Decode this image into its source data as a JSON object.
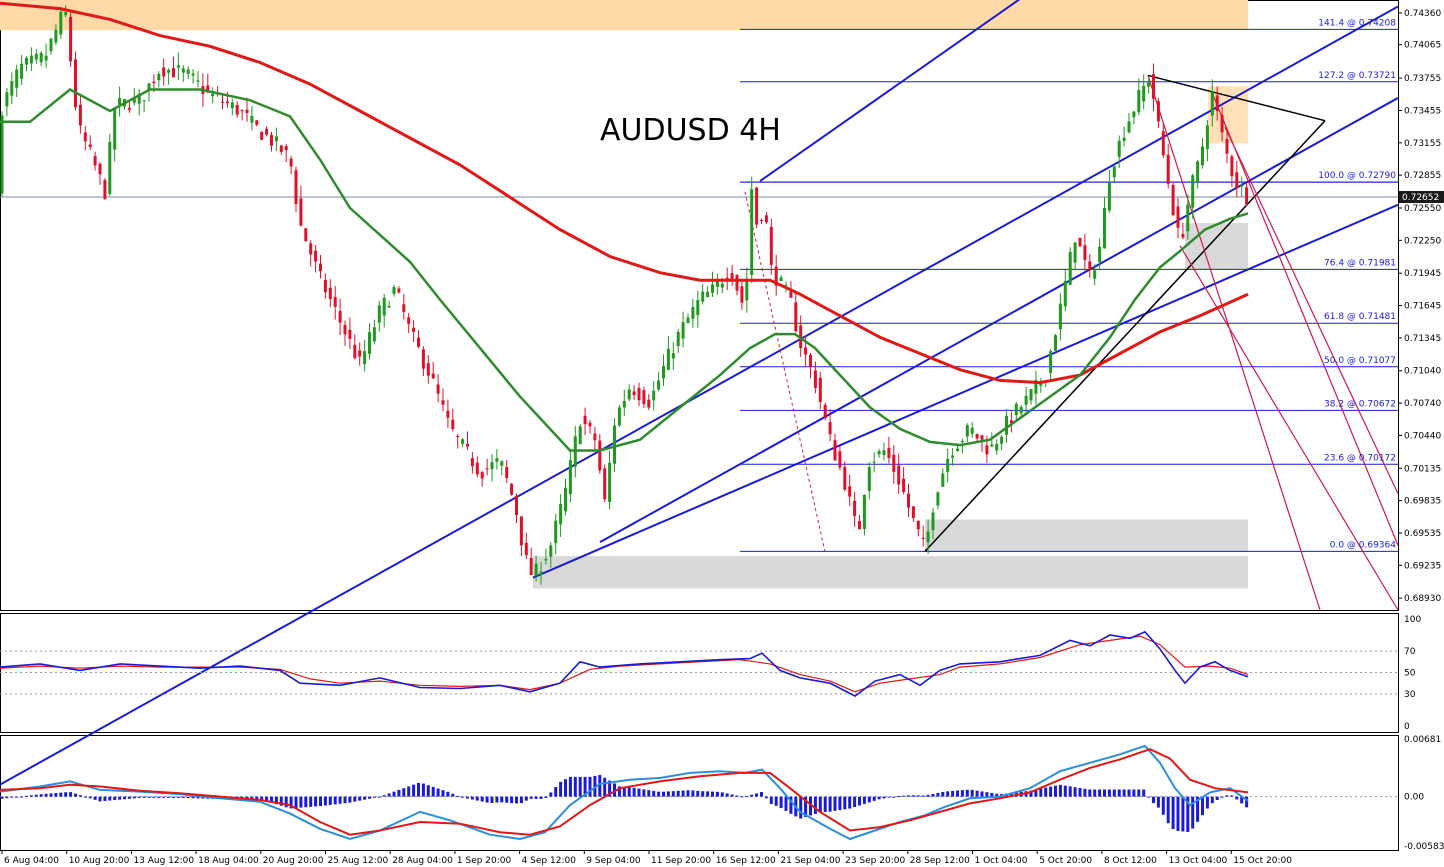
{
  "chart_data": {
    "type": "candlestick",
    "title": "AUDUSD  4H",
    "colors": {
      "bull": "#1f9a1f",
      "bear": "#e0102a",
      "ma_fast": "#2e8b2e",
      "ma_slow": "#e01818",
      "channel": "#1b1bd6",
      "fib": "#1b1bd6",
      "pitchfork": "#cc1a4a",
      "triangle": "#000000",
      "supply_zone": "#ffd9a8",
      "demand_zone": "#d9d9d9",
      "stoch_main": "#1b1bd6",
      "stoch_signal": "#e01818",
      "macd_fast": "#2a8ee0",
      "macd_slow": "#e01818",
      "macd_hist": "#1b1bd6"
    },
    "price_axis": {
      "min": 0.6882,
      "max": 0.7448,
      "ticks": [
        "0.74360",
        "0.74065",
        "0.73755",
        "0.73455",
        "0.73155",
        "0.72855",
        "0.72550",
        "0.72250",
        "0.71945",
        "0.71645",
        "0.71345",
        "0.71040",
        "0.70740",
        "0.70440",
        "0.70135",
        "0.69835",
        "0.69535",
        "0.69235",
        "0.68930"
      ],
      "current_price": "0.72652"
    },
    "x_labels": [
      "6 Aug 04:00",
      "10 Aug 20:00",
      "13 Aug 12:00",
      "18 Aug 04:00",
      "20 Aug 20:00",
      "25 Aug 12:00",
      "28 Aug 04:00",
      "1 Sep 20:00",
      "4 Sep 12:00",
      "9 Sep 04:00",
      "11 Sep 20:00",
      "16 Sep 12:00",
      "21 Sep 04:00",
      "23 Sep 20:00",
      "28 Sep 12:00",
      "1 Oct 04:00",
      "5 Oct 20:00",
      "8 Oct 12:00",
      "13 Oct 04:00",
      "15 Oct 20:00"
    ],
    "fib_levels": [
      {
        "label": "141.4 @ 0.74208",
        "price": 0.74208
      },
      {
        "label": "127.2 @ 0.73721",
        "price": 0.73721
      },
      {
        "label": "100.0 @ 0.72790",
        "price": 0.7279
      },
      {
        "label": "76.4 @ 0.71981",
        "price": 0.71981
      },
      {
        "label": "61.8 @ 0.71481",
        "price": 0.71481
      },
      {
        "label": "50.0 @ 0.71077",
        "price": 0.71077
      },
      {
        "label": "38.2 @ 0.70672",
        "price": 0.70672
      },
      {
        "label": "23.6 @ 0.70172",
        "price": 0.70172
      },
      {
        "label": "0.0 @ 0.69364",
        "price": 0.69364
      }
    ],
    "price_path": [
      [
        0,
        0.7345
      ],
      [
        20,
        0.7385
      ],
      [
        45,
        0.7395
      ],
      [
        65,
        0.744
      ],
      [
        78,
        0.733
      ],
      [
        90,
        0.7305
      ],
      [
        105,
        0.727
      ],
      [
        115,
        0.735
      ],
      [
        140,
        0.7355
      ],
      [
        160,
        0.7385
      ],
      [
        185,
        0.738
      ],
      [
        210,
        0.736
      ],
      [
        240,
        0.7345
      ],
      [
        255,
        0.733
      ],
      [
        275,
        0.7315
      ],
      [
        290,
        0.73
      ],
      [
        300,
        0.724
      ],
      [
        320,
        0.719
      ],
      [
        340,
        0.715
      ],
      [
        360,
        0.711
      ],
      [
        380,
        0.716
      ],
      [
        395,
        0.718
      ],
      [
        410,
        0.714
      ],
      [
        430,
        0.71
      ],
      [
        450,
        0.705
      ],
      [
        465,
        0.703
      ],
      [
        480,
        0.701
      ],
      [
        500,
        0.702
      ],
      [
        515,
        0.698
      ],
      [
        525,
        0.693
      ],
      [
        533,
        0.6912
      ],
      [
        550,
        0.694
      ],
      [
        565,
        0.699
      ],
      [
        580,
        0.706
      ],
      [
        595,
        0.704
      ],
      [
        605,
        0.698
      ],
      [
        615,
        0.706
      ],
      [
        630,
        0.709
      ],
      [
        650,
        0.7075
      ],
      [
        665,
        0.711
      ],
      [
        680,
        0.714
      ],
      [
        700,
        0.717
      ],
      [
        715,
        0.718
      ],
      [
        730,
        0.72
      ],
      [
        745,
        0.716
      ],
      [
        752,
        0.7278
      ],
      [
        758,
        0.723
      ],
      [
        764,
        0.7265
      ],
      [
        770,
        0.72
      ],
      [
        790,
        0.717
      ],
      [
        800,
        0.713
      ],
      [
        815,
        0.7095
      ],
      [
        830,
        0.704
      ],
      [
        845,
        0.7
      ],
      [
        858,
        0.695
      ],
      [
        868,
        0.702
      ],
      [
        885,
        0.703
      ],
      [
        900,
        0.7
      ],
      [
        915,
        0.696
      ],
      [
        925,
        0.6938
      ],
      [
        935,
        0.699
      ],
      [
        950,
        0.703
      ],
      [
        970,
        0.705
      ],
      [
        990,
        0.703
      ],
      [
        1010,
        0.706
      ],
      [
        1030,
        0.708
      ],
      [
        1045,
        0.71
      ],
      [
        1060,
        0.716
      ],
      [
        1075,
        0.723
      ],
      [
        1090,
        0.719
      ],
      [
        1100,
        0.722
      ],
      [
        1110,
        0.729
      ],
      [
        1125,
        0.733
      ],
      [
        1140,
        0.736
      ],
      [
        1150,
        0.7378
      ],
      [
        1160,
        0.732
      ],
      [
        1172,
        0.726
      ],
      [
        1180,
        0.722
      ],
      [
        1190,
        0.727
      ],
      [
        1200,
        0.73
      ],
      [
        1212,
        0.7362
      ],
      [
        1225,
        0.731
      ],
      [
        1235,
        0.728
      ],
      [
        1248,
        0.7265
      ]
    ],
    "ma_fast": [
      [
        0,
        0.7335
      ],
      [
        30,
        0.7335
      ],
      [
        70,
        0.7365
      ],
      [
        110,
        0.7345
      ],
      [
        150,
        0.7365
      ],
      [
        200,
        0.7365
      ],
      [
        250,
        0.7355
      ],
      [
        290,
        0.734
      ],
      [
        320,
        0.73
      ],
      [
        350,
        0.7255
      ],
      [
        380,
        0.723
      ],
      [
        410,
        0.7205
      ],
      [
        440,
        0.717
      ],
      [
        480,
        0.7125
      ],
      [
        520,
        0.708
      ],
      [
        550,
        0.705
      ],
      [
        570,
        0.703
      ],
      [
        600,
        0.703
      ],
      [
        640,
        0.704
      ],
      [
        680,
        0.707
      ],
      [
        720,
        0.71
      ],
      [
        750,
        0.7125
      ],
      [
        775,
        0.7138
      ],
      [
        795,
        0.7138
      ],
      [
        815,
        0.7125
      ],
      [
        840,
        0.71
      ],
      [
        870,
        0.707
      ],
      [
        900,
        0.705
      ],
      [
        930,
        0.7038
      ],
      [
        960,
        0.7035
      ],
      [
        990,
        0.704
      ],
      [
        1020,
        0.706
      ],
      [
        1050,
        0.708
      ],
      [
        1080,
        0.71
      ],
      [
        1110,
        0.7135
      ],
      [
        1135,
        0.717
      ],
      [
        1160,
        0.72
      ],
      [
        1180,
        0.7215
      ],
      [
        1205,
        0.7235
      ],
      [
        1230,
        0.7245
      ],
      [
        1248,
        0.725
      ]
    ],
    "ma_slow": [
      [
        0,
        0.7445
      ],
      [
        60,
        0.744
      ],
      [
        110,
        0.743
      ],
      [
        160,
        0.7415
      ],
      [
        210,
        0.7405
      ],
      [
        260,
        0.739
      ],
      [
        310,
        0.737
      ],
      [
        360,
        0.7345
      ],
      [
        410,
        0.732
      ],
      [
        460,
        0.7295
      ],
      [
        510,
        0.7265
      ],
      [
        560,
        0.7235
      ],
      [
        610,
        0.721
      ],
      [
        660,
        0.7195
      ],
      [
        700,
        0.7188
      ],
      [
        740,
        0.7188
      ],
      [
        770,
        0.7188
      ],
      [
        800,
        0.7175
      ],
      [
        840,
        0.7155
      ],
      [
        880,
        0.7135
      ],
      [
        920,
        0.712
      ],
      [
        960,
        0.7105
      ],
      [
        1000,
        0.7095
      ],
      [
        1040,
        0.7093
      ],
      [
        1080,
        0.71
      ],
      [
        1120,
        0.712
      ],
      [
        1160,
        0.714
      ],
      [
        1200,
        0.7155
      ],
      [
        1248,
        0.7175
      ]
    ],
    "stochastic": {
      "axis_ticks": [
        "100",
        "70",
        "50",
        "30",
        "0"
      ],
      "levels": [
        70,
        50,
        30
      ],
      "main": [
        [
          0,
          55
        ],
        [
          40,
          58
        ],
        [
          80,
          52
        ],
        [
          120,
          58
        ],
        [
          160,
          56
        ],
        [
          200,
          54
        ],
        [
          240,
          56
        ],
        [
          280,
          52
        ],
        [
          300,
          40
        ],
        [
          340,
          38
        ],
        [
          380,
          45
        ],
        [
          420,
          36
        ],
        [
          460,
          35
        ],
        [
          500,
          38
        ],
        [
          530,
          32
        ],
        [
          560,
          40
        ],
        [
          580,
          60
        ],
        [
          600,
          55
        ],
        [
          640,
          58
        ],
        [
          680,
          60
        ],
        [
          720,
          62
        ],
        [
          750,
          63
        ],
        [
          762,
          68
        ],
        [
          780,
          52
        ],
        [
          800,
          45
        ],
        [
          830,
          40
        ],
        [
          855,
          28
        ],
        [
          875,
          42
        ],
        [
          900,
          48
        ],
        [
          920,
          38
        ],
        [
          940,
          52
        ],
        [
          960,
          58
        ],
        [
          1000,
          60
        ],
        [
          1040,
          66
        ],
        [
          1070,
          80
        ],
        [
          1090,
          75
        ],
        [
          1110,
          85
        ],
        [
          1130,
          82
        ],
        [
          1145,
          88
        ],
        [
          1160,
          72
        ],
        [
          1175,
          52
        ],
        [
          1185,
          40
        ],
        [
          1200,
          55
        ],
        [
          1215,
          60
        ],
        [
          1230,
          52
        ],
        [
          1248,
          46
        ]
      ],
      "signal": [
        [
          0,
          54
        ],
        [
          40,
          56
        ],
        [
          80,
          54
        ],
        [
          120,
          56
        ],
        [
          160,
          55
        ],
        [
          200,
          55
        ],
        [
          240,
          55
        ],
        [
          280,
          53
        ],
        [
          310,
          44
        ],
        [
          340,
          40
        ],
        [
          380,
          42
        ],
        [
          420,
          38
        ],
        [
          460,
          37
        ],
        [
          500,
          38
        ],
        [
          530,
          34
        ],
        [
          560,
          40
        ],
        [
          590,
          53
        ],
        [
          620,
          56
        ],
        [
          660,
          58
        ],
        [
          700,
          60
        ],
        [
          740,
          62
        ],
        [
          770,
          58
        ],
        [
          800,
          48
        ],
        [
          830,
          42
        ],
        [
          855,
          32
        ],
        [
          880,
          40
        ],
        [
          910,
          44
        ],
        [
          940,
          48
        ],
        [
          960,
          55
        ],
        [
          1000,
          58
        ],
        [
          1040,
          64
        ],
        [
          1080,
          76
        ],
        [
          1110,
          80
        ],
        [
          1140,
          84
        ],
        [
          1160,
          76
        ],
        [
          1185,
          55
        ],
        [
          1210,
          56
        ],
        [
          1230,
          54
        ],
        [
          1248,
          48
        ]
      ]
    },
    "macd": {
      "axis_ticks": [
        "0.00681",
        "0.00",
        "-0.005831"
      ],
      "fast": [
        [
          0,
          0.0006
        ],
        [
          40,
          0.0012
        ],
        [
          70,
          0.0018
        ],
        [
          100,
          0.0008
        ],
        [
          140,
          0.0006
        ],
        [
          180,
          0.0003
        ],
        [
          220,
          -0.0002
        ],
        [
          260,
          -0.0006
        ],
        [
          290,
          -0.002
        ],
        [
          320,
          -0.0038
        ],
        [
          350,
          -0.005
        ],
        [
          380,
          -0.004
        ],
        [
          420,
          -0.0018
        ],
        [
          450,
          -0.0028
        ],
        [
          490,
          -0.0045
        ],
        [
          520,
          -0.005
        ],
        [
          545,
          -0.0042
        ],
        [
          570,
          -0.001
        ],
        [
          600,
          0.0015
        ],
        [
          630,
          0.002
        ],
        [
          660,
          0.0022
        ],
        [
          690,
          0.0028
        ],
        [
          720,
          0.003
        ],
        [
          745,
          0.0028
        ],
        [
          762,
          0.0032
        ],
        [
          780,
          0.001
        ],
        [
          800,
          -0.0018
        ],
        [
          830,
          -0.0038
        ],
        [
          850,
          -0.005
        ],
        [
          875,
          -0.004
        ],
        [
          900,
          -0.003
        ],
        [
          925,
          -0.0022
        ],
        [
          945,
          -0.0012
        ],
        [
          970,
          -0.0002
        ],
        [
          1000,
          0.0
        ],
        [
          1030,
          0.001
        ],
        [
          1060,
          0.003
        ],
        [
          1090,
          0.004
        ],
        [
          1120,
          0.005
        ],
        [
          1145,
          0.006
        ],
        [
          1160,
          0.004
        ],
        [
          1175,
          0.001
        ],
        [
          1190,
          -0.001
        ],
        [
          1210,
          0.0005
        ],
        [
          1230,
          0.001
        ],
        [
          1248,
          -0.0005
        ]
      ],
      "slow": [
        [
          0,
          0.0008
        ],
        [
          40,
          0.001
        ],
        [
          70,
          0.0014
        ],
        [
          100,
          0.0012
        ],
        [
          140,
          0.0007
        ],
        [
          180,
          0.0004
        ],
        [
          220,
          0.0
        ],
        [
          260,
          -0.0004
        ],
        [
          290,
          -0.001
        ],
        [
          320,
          -0.003
        ],
        [
          350,
          -0.0045
        ],
        [
          380,
          -0.004
        ],
        [
          420,
          -0.003
        ],
        [
          460,
          -0.0032
        ],
        [
          500,
          -0.0042
        ],
        [
          530,
          -0.0045
        ],
        [
          560,
          -0.0035
        ],
        [
          590,
          -0.001
        ],
        [
          620,
          0.001
        ],
        [
          660,
          0.0018
        ],
        [
          700,
          0.0024
        ],
        [
          740,
          0.0028
        ],
        [
          770,
          0.0028
        ],
        [
          790,
          0.001
        ],
        [
          820,
          -0.0018
        ],
        [
          850,
          -0.004
        ],
        [
          880,
          -0.0036
        ],
        [
          910,
          -0.0028
        ],
        [
          940,
          -0.0018
        ],
        [
          970,
          -0.0008
        ],
        [
          1000,
          -0.0002
        ],
        [
          1030,
          0.0005
        ],
        [
          1060,
          0.002
        ],
        [
          1090,
          0.0034
        ],
        [
          1120,
          0.0044
        ],
        [
          1150,
          0.0056
        ],
        [
          1170,
          0.0045
        ],
        [
          1190,
          0.002
        ],
        [
          1215,
          0.001
        ],
        [
          1248,
          0.0005
        ]
      ]
    }
  }
}
